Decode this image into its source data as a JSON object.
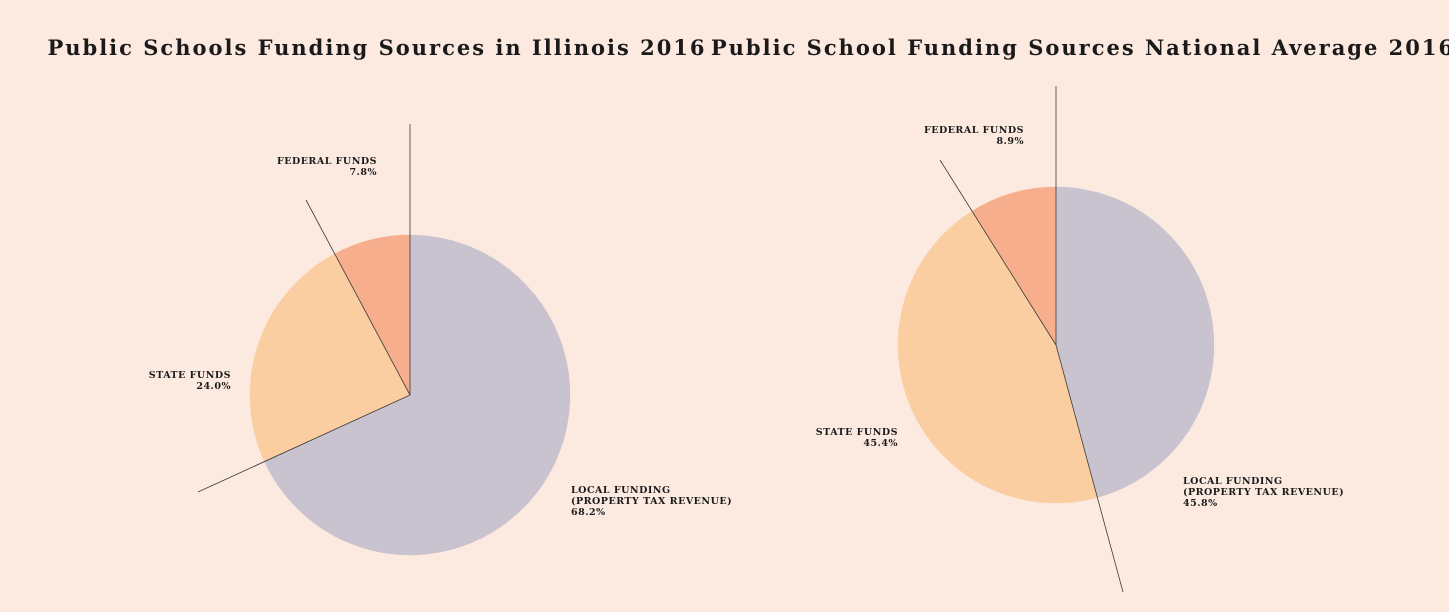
{
  "chart_data": [
    {
      "type": "pie",
      "title": "Public Schools Funding Sources in Illinois 2016",
      "slices": [
        {
          "label": "LOCAL FUNDING",
          "sublabel": "(PROPERTY TAX REVENUE)",
          "value_text": "68.2%",
          "value": 68.2,
          "color": "#c9c3cf"
        },
        {
          "label": "STATE FUNDS",
          "sublabel": "",
          "value_text": "24.0%",
          "value": 24.0,
          "color": "#fbcea1"
        },
        {
          "label": "FEDERAL FUNDS",
          "sublabel": "",
          "value_text": "7.8%",
          "value": 7.8,
          "color": "#f7ae8c"
        }
      ]
    },
    {
      "type": "pie",
      "title": "Public School Funding Sources National Average 2016",
      "slices": [
        {
          "label": "LOCAL FUNDING",
          "sublabel": "(PROPERTY TAX REVENUE)",
          "value_text": "45.8%",
          "value": 45.8,
          "color": "#c9c3cf"
        },
        {
          "label": "STATE FUNDS",
          "sublabel": "",
          "value_text": "45.4%",
          "value": 45.4,
          "color": "#fbcea1"
        },
        {
          "label": "FEDERAL FUNDS",
          "sublabel": "",
          "value_text": "8.9%",
          "value": 8.9,
          "color": "#f7ae8c"
        }
      ]
    }
  ]
}
